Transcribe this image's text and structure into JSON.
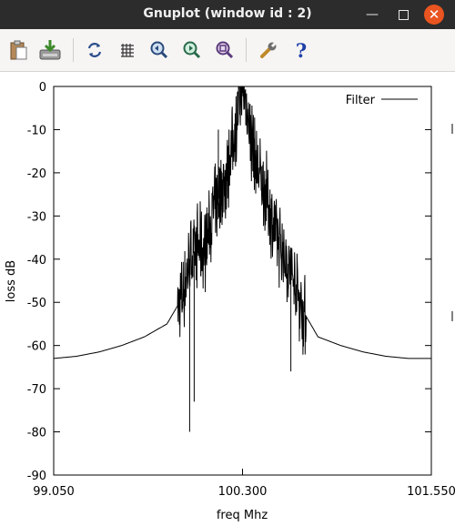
{
  "window": {
    "title": "Gnuplot (window id : 2)",
    "minimize_icon": "minimize-icon",
    "maximize_icon": "maximize-icon",
    "close_icon": "close-icon",
    "close_color": "#e95420"
  },
  "toolbar": {
    "buttons": [
      {
        "icon": "clipboard-icon"
      },
      {
        "icon": "export-icon"
      },
      {
        "icon": "replot-icon"
      },
      {
        "icon": "grid-icon"
      },
      {
        "icon": "zoom-previous-icon"
      },
      {
        "icon": "zoom-next-icon"
      },
      {
        "icon": "unzoom-icon"
      },
      {
        "icon": "settings-icon"
      },
      {
        "icon": "help-icon"
      }
    ]
  },
  "chart_data": {
    "type": "line",
    "xlabel": "freq Mhz",
    "ylabel": "loss dB",
    "xlim": [
      99.05,
      101.55
    ],
    "ylim": [
      -90,
      0
    ],
    "x_ticks": [
      "99.050",
      "100.300",
      "101.550"
    ],
    "y_ticks": [
      "0",
      "-10",
      "-20",
      "-30",
      "-40",
      "-50",
      "-60",
      "-70",
      "-80",
      "-90"
    ],
    "grid": false,
    "legend_position": "top-right",
    "series": [
      {
        "name": "Filter",
        "color": "#000000",
        "x": [
          99.05,
          99.2,
          99.35,
          99.5,
          99.65,
          99.8,
          99.9,
          99.95,
          100.0,
          100.05,
          100.1,
          100.15,
          100.2,
          100.25,
          100.28,
          100.3,
          100.32,
          100.35,
          100.4,
          100.45,
          100.5,
          100.55,
          100.6,
          100.65,
          100.7,
          100.8,
          100.95,
          101.1,
          101.25,
          101.4,
          101.55
        ],
        "y": [
          -63,
          -62.5,
          -61.5,
          -60,
          -58,
          -55,
          -49,
          -40,
          -37,
          -38,
          -30,
          -25,
          -20,
          -10,
          -3,
          0,
          -3,
          -10,
          -20,
          -24,
          -32,
          -37,
          -41,
          -46,
          -52,
          -58,
          -60,
          -61.5,
          -62.5,
          -63,
          -63
        ]
      }
    ],
    "annotations": {
      "deep_notches": [
        {
          "x": 99.95,
          "y": -80
        },
        {
          "x": 99.98,
          "y": -73
        },
        {
          "x": 100.62,
          "y": -66
        }
      ],
      "spur": {
        "x": 100.14,
        "y": -10
      }
    }
  }
}
